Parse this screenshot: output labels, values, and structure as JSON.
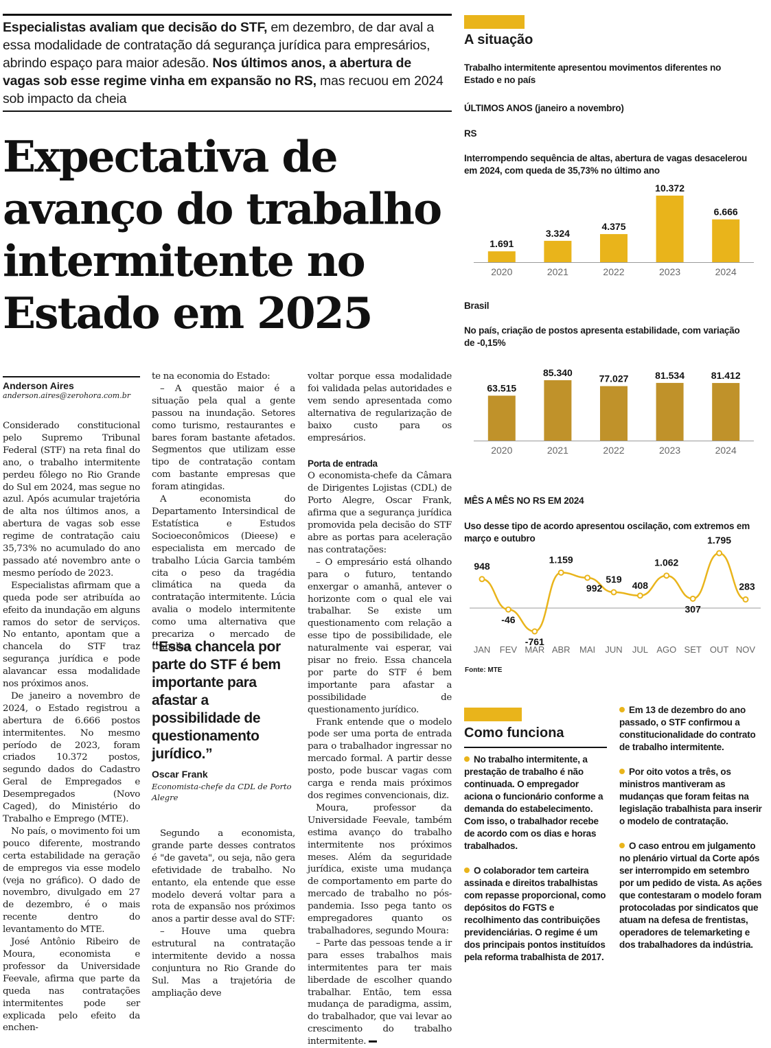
{
  "deck": {
    "part1": "Especialistas avaliam que decisão do STF,",
    "part2": " em dezembro, de dar aval a essa modalidade de contratação dá segurança jurídica para empresários, abrindo espaço para maior adesão. ",
    "part3": "Nos últimos anos, a abertura de vagas sob esse regime vinha em expansão no RS,",
    "part4": " mas recuou em 2024 sob impacto da cheia"
  },
  "headline": "Expectativa de avanço do trabalho intermitente no Estado em 2025",
  "byline": {
    "name": "Anderson Aires",
    "email": "anderson.aires@zerohora.com.br"
  },
  "article": {
    "col1": [
      "Considerado constitucional pelo Supremo Tribunal Federal (STF) na reta final do ano, o trabalho intermitente perdeu fôlego no Rio Grande do Sul em 2024, mas segue no azul. Após acumular trajetória de alta nos últimos anos, a abertura de vagas sob esse regime de contratação caiu 35,73% no acumulado do ano passado até novembro ante o mesmo período de 2023.",
      "Especialistas afirmam que a queda pode ser atribuída ao efeito da inundação em alguns ramos do setor de serviços. No entanto, apontam que a chancela do STF traz segurança jurídica e pode alavancar essa modalidade nos próximos anos.",
      "De janeiro a novembro de 2024, o Estado registrou a abertura de 6.666 postos intermitentes. No mesmo período de 2023, foram criados 10.372 postos, segundo dados do Cadastro Geral de Empregados e Desempregados (Novo Caged), do Ministério do Trabalho e Emprego (MTE).",
      "No país, o movimento foi um pouco diferente, mostrando certa estabilidade na geração de empregos via esse modelo (veja no gráfico). O dado de novembro, divulgado em 27 de dezembro, é o mais recente dentro do levantamento do MTE.",
      "José Antônio Ribeiro de Moura, economista e professor da Universidade Feevale, afirma que parte da queda nas contratações intermitentes pode ser explicada pelo efeito da enchen-"
    ],
    "col2": [
      "te na economia do Estado:",
      "– A questão maior é a situação pela qual a gente passou na inundação. Setores como turismo, restaurantes e bares foram bastante afetados. Segmentos que utilizam esse tipo de contratação contam com bastante empresas que foram atingidas.",
      "A economista do Departamento Intersindical de Estatística e Estudos Socioeconômicos (Dieese) e especialista em mercado de trabalho Lúcia Garcia também cita o peso da tragédia climática na queda da contratação intermitente. Lúcia avalia o modelo intermitente como uma alternativa que precariza o mercado de trabalho."
    ],
    "col2b": [
      "Segundo a economista, grande parte desses contratos é \"de gaveta\", ou seja, não gera efetividade de trabalho. No entanto, ela entende que esse modelo deverá voltar para a rota de expansão nos próximos anos a partir desse aval do STF:",
      "– Houve uma quebra estrutural na contratação intermitente devido a nossa conjuntura no Rio Grande do Sul. Mas a trajetória de ampliação deve"
    ],
    "col3a": [
      "voltar porque essa modalidade foi validada pelas autoridades e vem sendo apresentada como alternativa de regularização de baixo custo para os empresários."
    ],
    "subhead": "Porta de entrada",
    "col3b": [
      "O economista-chefe da Câmara de Dirigentes Lojistas (CDL) de Porto Alegre, Oscar Frank, afirma que a segurança jurídica promovida pela decisão do STF abre as portas para aceleração nas contratações:",
      "– O empresário está olhando para o futuro, tentando enxergar o amanhã, antever o horizonte com o qual ele vai trabalhar. Se existe um questionamento com relação a esse tipo de possibilidade, ele naturalmente vai esperar, vai pisar no freio. Essa chancela por parte do STF é bem importante para afastar a possibilidade de questionamento jurídico.",
      "Frank entende que o modelo pode ser uma porta de entrada para o trabalhador ingressar no mercado formal. A partir desse posto, pode buscar vagas com carga e renda mais próximos dos regimes convencionais, diz.",
      "Moura, professor da Universidade Feevale, também estima avanço do trabalho intermitente nos próximos meses. Além da seguridade jurídica, existe uma mudança de comportamento em parte do mercado de trabalho no pós-pandemia. Isso pega tanto os empregadores quanto os trabalhadores, segundo Moura:",
      "– Parte das pessoas tende a ir para esses trabalhos mais intermitentes para ter mais liberdade de escolher quando trabalhar. Então, tem essa mudança de paradigma, assim, do trabalhador, que vai levar ao crescimento do trabalho intermitente."
    ]
  },
  "pullquote": {
    "quote": "“Essa chancela por parte do STF é bem importante para afastar a possibilidade de questionamento jurídico.”",
    "name": "Oscar Frank",
    "role": "Economista-chefe da CDL de Porto Alegre"
  },
  "sidebar": {
    "title": "A situação",
    "subtitle": "Trabalho intermitente apresentou movimentos diferentes no Estado e no país",
    "period": "ÚLTIMOS ANOS (janeiro a novembro)",
    "rs_label": "RS",
    "rs_subtitle": "Interrompendo sequência de altas, abertura de vagas desacelerou em 2024, com queda de 35,73% no último ano",
    "br_label": "Brasil",
    "br_subtitle": "No país, criação de postos apresenta estabilidade, com variação de -0,15%",
    "monthly_title": "MÊS A MÊS NO RS EM 2024",
    "monthly_subtitle": "Uso desse tipo de acordo apresentou oscilação, com extremos em março e outubro",
    "source": "Fonte: MTE"
  },
  "colors": {
    "rs_bar": "#e9b41b",
    "br_bar": "#c0922a",
    "line": "#e9b41b",
    "accent": "#e9b41b"
  },
  "chart_data": [
    {
      "type": "bar",
      "categories": [
        "2020",
        "2021",
        "2022",
        "2023",
        "2024"
      ],
      "values": [
        1691,
        3324,
        4375,
        10372,
        6666
      ],
      "labels": [
        "1.691",
        "3.324",
        "4.375",
        "10.372",
        "6.666"
      ],
      "title": "RS"
    },
    {
      "type": "bar",
      "categories": [
        "2020",
        "2021",
        "2022",
        "2023",
        "2024"
      ],
      "values": [
        63515,
        85340,
        77027,
        81534,
        81412
      ],
      "labels": [
        "63.515",
        "85.340",
        "77.027",
        "81.534",
        "81.412"
      ],
      "title": "Brasil"
    },
    {
      "type": "line",
      "categories": [
        "JAN",
        "FEV",
        "MAR",
        "ABR",
        "MAI",
        "JUN",
        "JUL",
        "AGO",
        "SET",
        "OUT",
        "NOV"
      ],
      "values": [
        948,
        -46,
        -761,
        1159,
        992,
        519,
        408,
        1062,
        307,
        1795,
        283
      ],
      "labels": [
        "948",
        "-46",
        "-761",
        "1.159",
        "992",
        "519",
        "408",
        "1.062",
        "307",
        "1.795",
        "283"
      ],
      "title": "MÊS A MÊS NO RS EM 2024"
    }
  ],
  "como_funciona": {
    "title": "Como funciona",
    "items": [
      "No trabalho intermitente, a prestação de trabalho é não continuada. O empregador aciona o funcionário conforme a demanda do estabelecimento. Com isso, o trabalhador recebe de acordo com os dias e horas trabalhados.",
      "O colaborador tem carteira assinada e direitos trabalhistas com repasse proporcional, como depósitos do FGTS e recolhimento das contribuições previdenciárias. O regime é um dos principais pontos instituídos pela reforma trabalhista de 2017.",
      "Em 13 de dezembro do ano passado, o STF confirmou a constitucionalidade do contrato de trabalho intermitente.",
      "Por oito votos a três, os ministros mantiveram as mudanças que foram feitas na legislação trabalhista para inserir o modelo de contratação.",
      "O caso entrou em julgamento no plenário virtual da Corte após ser interrompido em setembro por um pedido de vista. As ações que contestaram o modelo foram protocoladas por sindicatos que atuam na defesa de frentistas, operadores de telemarketing e dos trabalhadores da indústria."
    ]
  }
}
